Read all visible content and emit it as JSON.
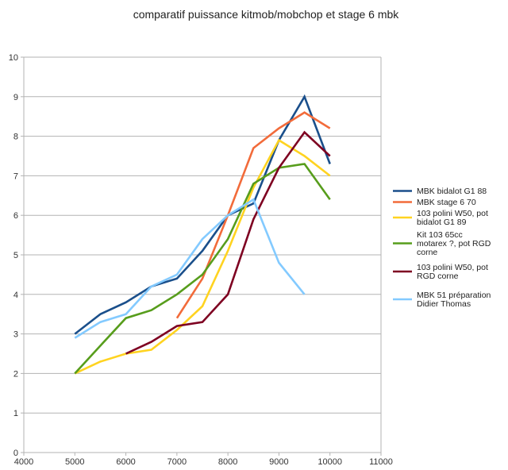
{
  "chart_data": {
    "type": "line",
    "title": "comparatif puissance kitmob/mobchop et stage 6 mbk",
    "xlabel": "",
    "ylabel": "",
    "xlim": [
      4000,
      11000
    ],
    "ylim": [
      0,
      10
    ],
    "x_ticks": [
      4000,
      5000,
      6000,
      7000,
      8000,
      9000,
      10000,
      11000
    ],
    "y_ticks": [
      0,
      1,
      2,
      3,
      4,
      5,
      6,
      7,
      8,
      9,
      10
    ],
    "grid": "horizontal",
    "legend_position": "right",
    "series": [
      {
        "name": "MBK bidalot G1 88",
        "color": "#1a4f8b",
        "points": [
          [
            5000,
            3.0
          ],
          [
            5500,
            3.5
          ],
          [
            6000,
            3.8
          ],
          [
            6500,
            4.2
          ],
          [
            7000,
            4.4
          ],
          [
            7500,
            5.1
          ],
          [
            8000,
            6.0
          ],
          [
            8500,
            6.3
          ],
          [
            9000,
            7.9
          ],
          [
            9500,
            9.0
          ],
          [
            10000,
            7.3
          ]
        ]
      },
      {
        "name": "MBK stage 6 70",
        "color": "#f26b3a",
        "points": [
          [
            7000,
            3.4
          ],
          [
            7500,
            4.4
          ],
          [
            8000,
            6.0
          ],
          [
            8500,
            7.7
          ],
          [
            9000,
            8.2
          ],
          [
            9500,
            8.6
          ],
          [
            10000,
            8.2
          ]
        ]
      },
      {
        "name": "103 polini W50,  pot bidalot G1 89",
        "color": "#ffd320",
        "points": [
          [
            5000,
            2.0
          ],
          [
            5500,
            2.3
          ],
          [
            6000,
            2.5
          ],
          [
            6500,
            2.6
          ],
          [
            7000,
            3.1
          ],
          [
            7500,
            3.7
          ],
          [
            8000,
            5.1
          ],
          [
            8500,
            6.7
          ],
          [
            9000,
            7.9
          ],
          [
            9500,
            7.5
          ],
          [
            10000,
            7.0
          ]
        ]
      },
      {
        "name": "Kit 103 65cc motarex ?, pot RGD corne",
        "color": "#579d1c",
        "points": [
          [
            5000,
            2.0
          ],
          [
            5500,
            2.7
          ],
          [
            6000,
            3.4
          ],
          [
            6500,
            3.6
          ],
          [
            7000,
            4.0
          ],
          [
            7500,
            4.5
          ],
          [
            8000,
            5.4
          ],
          [
            8500,
            6.8
          ],
          [
            9000,
            7.2
          ],
          [
            9500,
            7.3
          ],
          [
            10000,
            6.4
          ]
        ]
      },
      {
        "name": "103 polini W50,  pot RGD corne",
        "color": "#7e0021",
        "points": [
          [
            6000,
            2.5
          ],
          [
            6500,
            2.8
          ],
          [
            7000,
            3.2
          ],
          [
            7500,
            3.3
          ],
          [
            8000,
            4.0
          ],
          [
            8500,
            5.9
          ],
          [
            9000,
            7.2
          ],
          [
            9500,
            8.1
          ],
          [
            10000,
            7.5
          ]
        ]
      },
      {
        "name": "MBK 51 préparation Didier Thomas",
        "color": "#83caff",
        "points": [
          [
            5000,
            2.9
          ],
          [
            5500,
            3.3
          ],
          [
            6000,
            3.5
          ],
          [
            6500,
            4.2
          ],
          [
            7000,
            4.5
          ],
          [
            7500,
            5.4
          ],
          [
            8000,
            6.0
          ],
          [
            8500,
            6.4
          ],
          [
            9000,
            4.8
          ],
          [
            9500,
            4.0
          ]
        ]
      }
    ],
    "legend_lines": [
      [
        "MBK bidalot G1 88"
      ],
      [
        "MBK stage 6 70"
      ],
      [
        "103 polini W50,  pot",
        "bidalot G1 89"
      ],
      [
        "Kit 103 65cc",
        "motarex ?, pot RGD",
        "corne"
      ],
      [
        "103 polini W50,  pot",
        "RGD corne"
      ],
      [
        "MBK 51 préparation",
        "Didier Thomas"
      ]
    ]
  }
}
